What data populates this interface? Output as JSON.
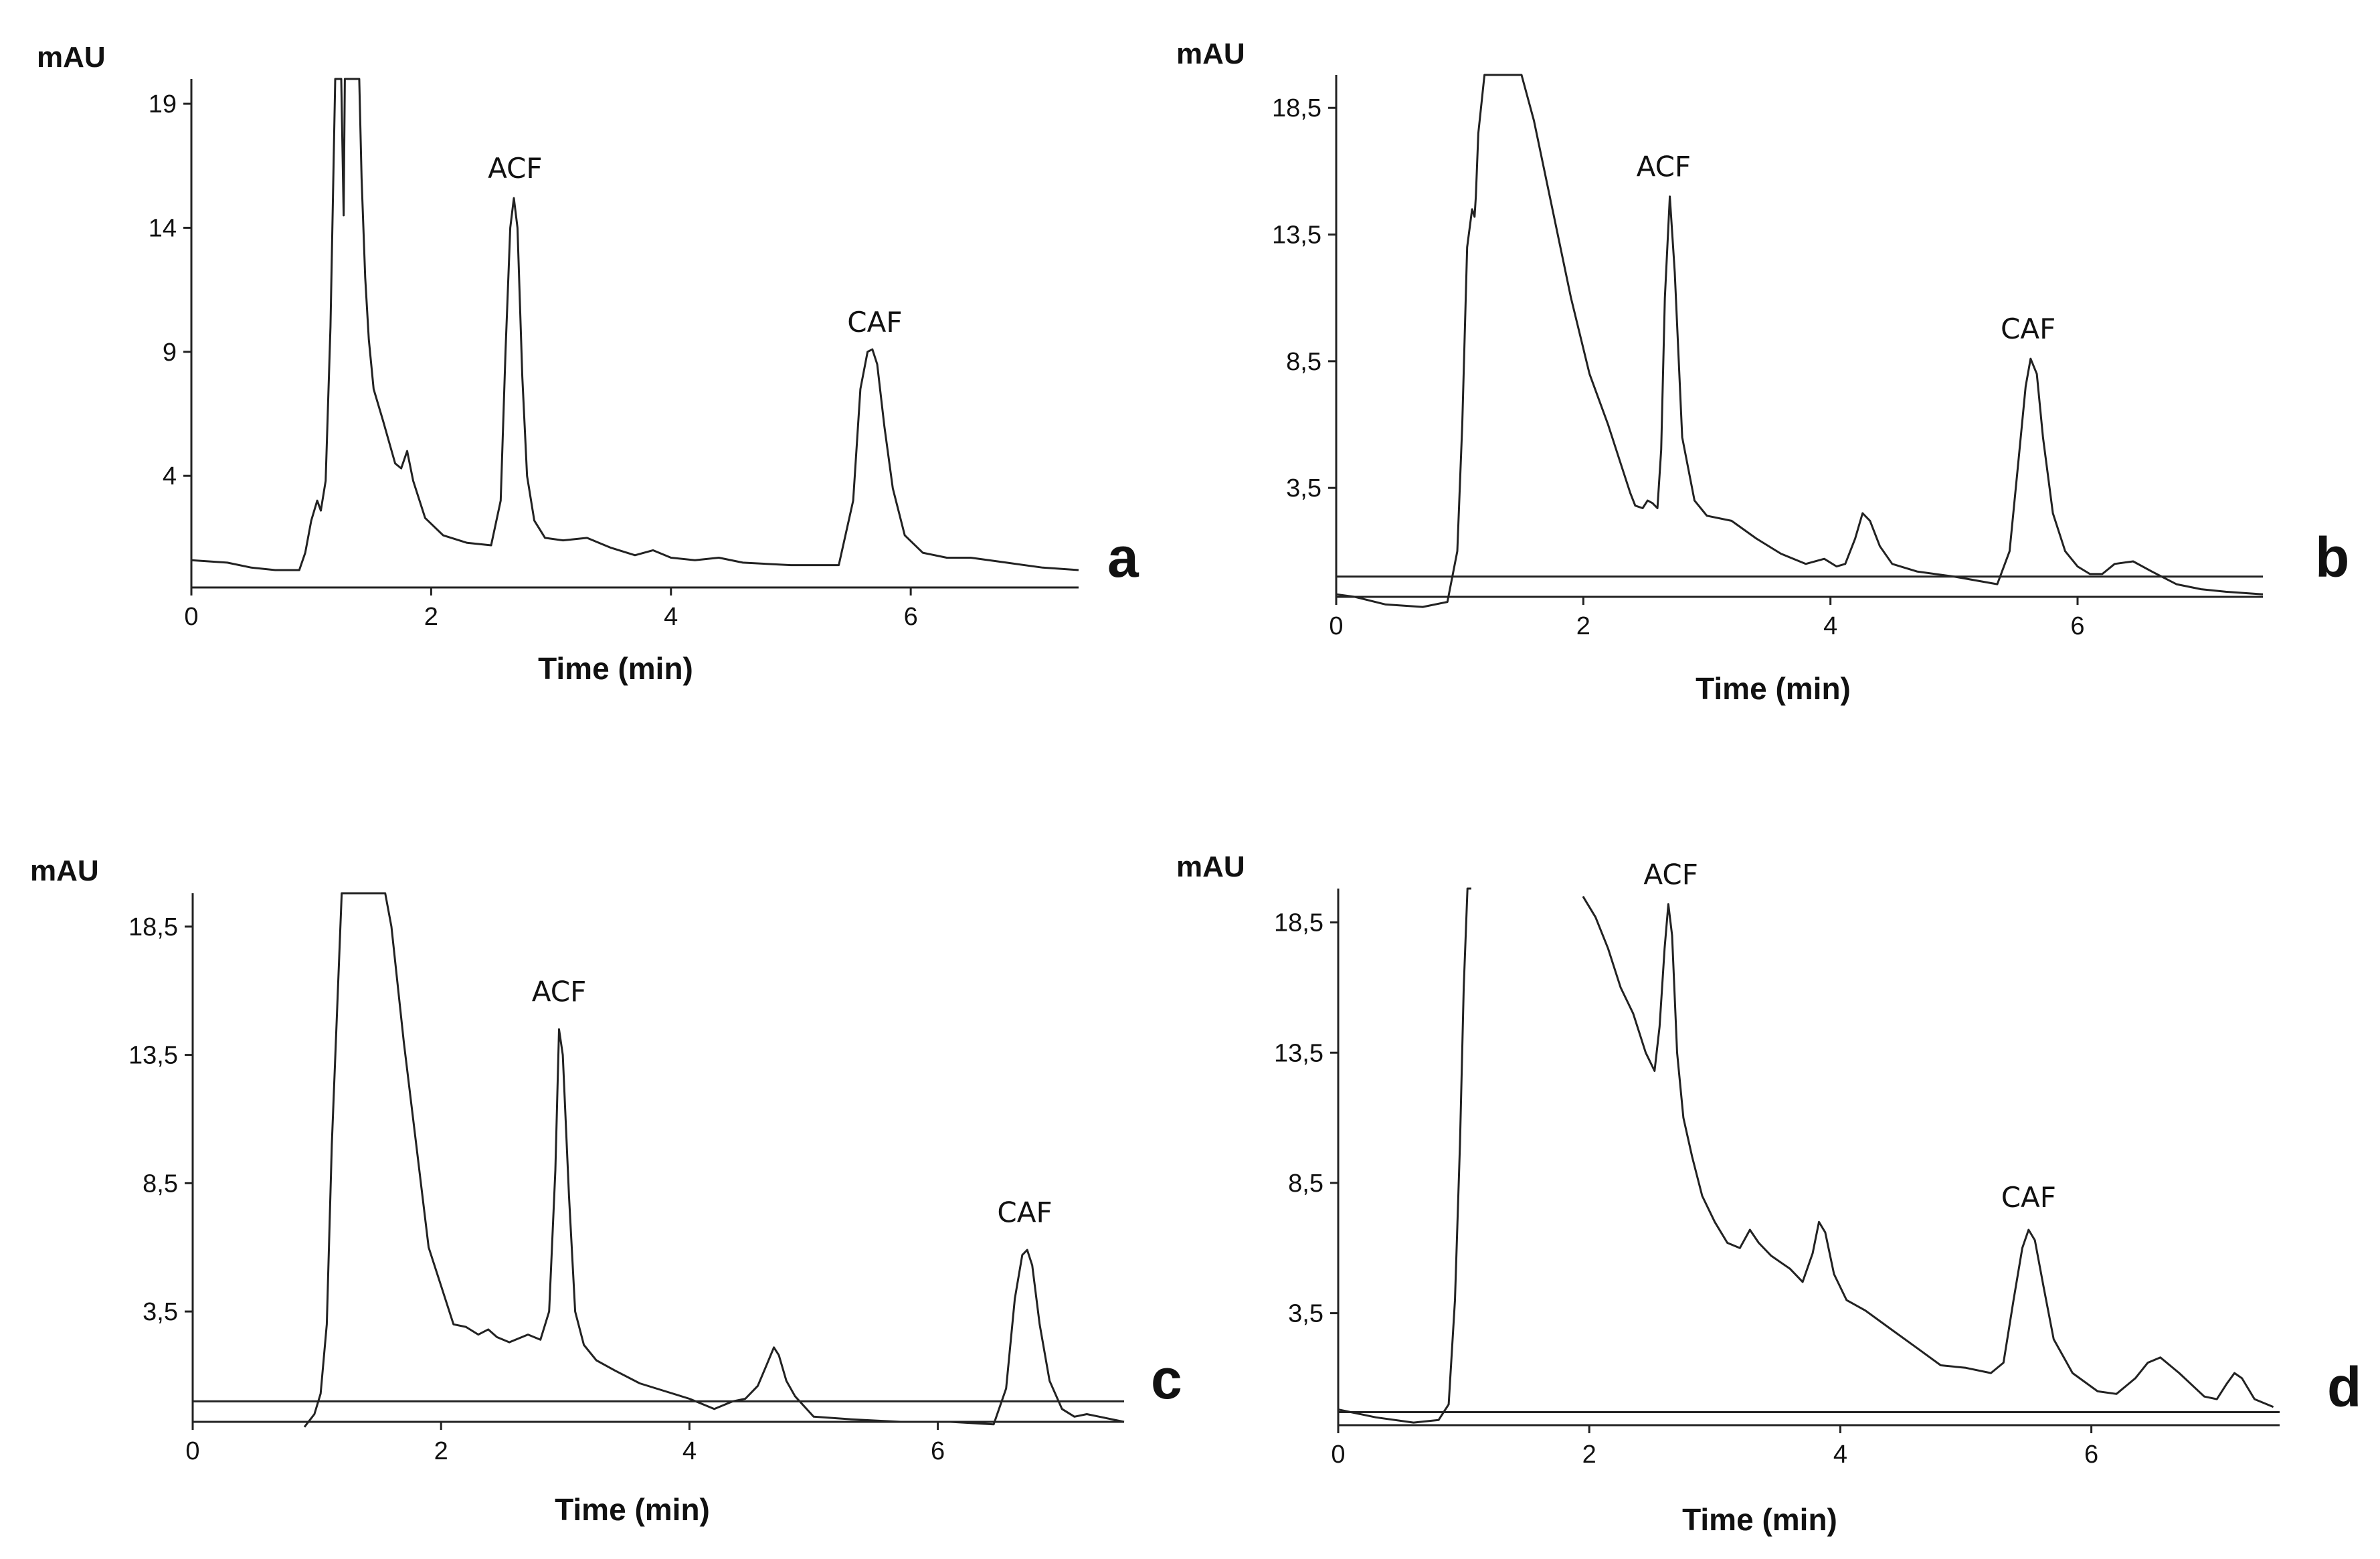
{
  "chart_data": [
    {
      "type": "line",
      "panel_label": "a",
      "ylabel": "mAU",
      "xlabel": "Time (min)",
      "xlim": [
        0,
        7.4
      ],
      "ylim": [
        -0.5,
        20
      ],
      "x_ticks": [
        0,
        2,
        4,
        6
      ],
      "x_tick_labels": [
        "0",
        "2",
        "4",
        "6"
      ],
      "y_ticks": [
        4,
        9,
        14,
        19
      ],
      "y_tick_labels": [
        "4",
        "9",
        "14",
        "19"
      ],
      "baseline_y": null,
      "annotations": [
        {
          "text": "ACF",
          "x": 2.7,
          "y": 15.2
        },
        {
          "text": "CAF",
          "x": 5.7,
          "y": 9.0
        }
      ],
      "series": [
        {
          "name": "chromatogram",
          "x": [
            0,
            0.3,
            0.5,
            0.7,
            0.9,
            0.95,
            1.0,
            1.05,
            1.08,
            1.12,
            1.16,
            1.2,
            1.23,
            1.25,
            1.27,
            1.28,
            1.3,
            1.32,
            1.35,
            1.4,
            1.42,
            1.45,
            1.48,
            1.52,
            1.6,
            1.7,
            1.75,
            1.8,
            1.85,
            1.95,
            2.1,
            2.3,
            2.5,
            2.58,
            2.62,
            2.66,
            2.69,
            2.72,
            2.76,
            2.8,
            2.86,
            2.95,
            3.1,
            3.3,
            3.5,
            3.7,
            3.85,
            4.0,
            4.2,
            4.4,
            4.6,
            5.0,
            5.4,
            5.52,
            5.58,
            5.64,
            5.68,
            5.72,
            5.78,
            5.85,
            5.95,
            6.1,
            6.3,
            6.5,
            6.8,
            7.1,
            7.4
          ],
          "y": [
            0.6,
            0.5,
            0.3,
            0.2,
            0.2,
            0.9,
            2.2,
            3.0,
            2.6,
            3.8,
            10,
            20,
            20,
            20,
            14.5,
            20,
            20,
            20,
            20,
            20,
            16,
            12,
            9.5,
            7.5,
            6.2,
            4.5,
            4.3,
            5.0,
            3.8,
            2.3,
            1.6,
            1.3,
            1.2,
            3.0,
            9.0,
            14.0,
            15.2,
            14.0,
            8.0,
            4.0,
            2.2,
            1.5,
            1.4,
            1.5,
            1.1,
            0.8,
            1.0,
            0.7,
            0.6,
            0.7,
            0.5,
            0.4,
            0.4,
            3.0,
            7.5,
            9.0,
            9.1,
            8.5,
            6.0,
            3.5,
            1.6,
            0.9,
            0.7,
            0.7,
            0.5,
            0.3,
            0.2
          ]
        }
      ]
    },
    {
      "type": "line",
      "panel_label": "b",
      "ylabel": "mAU",
      "xlabel": "Time (min)",
      "xlim": [
        0,
        7.5
      ],
      "ylim": [
        -0.8,
        19.8
      ],
      "x_ticks": [
        0,
        2,
        4,
        6
      ],
      "x_tick_labels": [
        "0",
        "2",
        "4",
        "6"
      ],
      "y_ticks": [
        3.5,
        8.5,
        13.5,
        18.5
      ],
      "y_tick_labels": [
        "3,5",
        "8,5",
        "13,5",
        "18,5"
      ],
      "baseline_y": 0,
      "annotations": [
        {
          "text": "ACF",
          "x": 2.65,
          "y": 15.0
        },
        {
          "text": "CAF",
          "x": 5.6,
          "y": 8.6
        }
      ],
      "series": [
        {
          "name": "chromatogram",
          "x": [
            0,
            0.15,
            0.4,
            0.7,
            0.9,
            0.98,
            1.02,
            1.06,
            1.1,
            1.12,
            1.13,
            1.15,
            1.2,
            1.3,
            1.4,
            1.5,
            1.6,
            1.75,
            1.9,
            2.05,
            2.2,
            2.3,
            2.38,
            2.42,
            2.48,
            2.52,
            2.56,
            2.6,
            2.63,
            2.66,
            2.7,
            2.74,
            2.8,
            2.9,
            3.0,
            3.2,
            3.4,
            3.6,
            3.8,
            3.95,
            4.05,
            4.12,
            4.2,
            4.26,
            4.32,
            4.4,
            4.5,
            4.7,
            5.0,
            5.35,
            5.45,
            5.52,
            5.58,
            5.62,
            5.67,
            5.72,
            5.8,
            5.9,
            6.0,
            6.1,
            6.2,
            6.3,
            6.45,
            6.6,
            6.8,
            7.0,
            7.2,
            7.5
          ],
          "y": [
            -0.7,
            -0.8,
            -1.1,
            -1.2,
            -1.0,
            1.0,
            6.0,
            13.0,
            14.5,
            14.2,
            15.0,
            17.5,
            19.8,
            19.8,
            19.8,
            19.8,
            18.0,
            14.5,
            11.0,
            8.0,
            6.0,
            4.5,
            3.3,
            2.8,
            2.7,
            3.0,
            2.9,
            2.7,
            5.0,
            11.0,
            15.0,
            12.0,
            5.5,
            3.0,
            2.4,
            2.2,
            1.5,
            0.9,
            0.5,
            0.7,
            0.4,
            0.5,
            1.5,
            2.5,
            2.2,
            1.2,
            0.5,
            0.2,
            0.0,
            -0.3,
            1.0,
            4.5,
            7.5,
            8.6,
            8.0,
            5.5,
            2.5,
            1.0,
            0.4,
            0.1,
            0.1,
            0.5,
            0.6,
            0.2,
            -0.3,
            -0.5,
            -0.6,
            -0.7
          ]
        }
      ]
    },
    {
      "type": "line",
      "panel_label": "c",
      "ylabel": "mAU",
      "xlabel": "Time (min)",
      "xlim": [
        0,
        7.5
      ],
      "ylim": [
        -0.8,
        19.8
      ],
      "x_ticks": [
        0,
        2,
        4,
        6
      ],
      "x_tick_labels": [
        "0",
        "2",
        "4",
        "6"
      ],
      "y_ticks": [
        3.5,
        8.5,
        13.5,
        18.5
      ],
      "y_tick_labels": [
        "3,5",
        "8,5",
        "13,5",
        "18,5"
      ],
      "baseline_y": 0,
      "annotations": [
        {
          "text": "ACF",
          "x": 2.95,
          "y": 14.8
        },
        {
          "text": "CAF",
          "x": 6.7,
          "y": 6.2
        }
      ],
      "series": [
        {
          "name": "chromatogram",
          "x": [
            0.9,
            0.98,
            1.03,
            1.08,
            1.12,
            1.2,
            1.3,
            1.4,
            1.5,
            1.55,
            1.6,
            1.7,
            1.8,
            1.9,
            2.0,
            2.1,
            2.2,
            2.3,
            2.38,
            2.45,
            2.55,
            2.7,
            2.8,
            2.87,
            2.92,
            2.95,
            2.98,
            3.03,
            3.08,
            3.15,
            3.25,
            3.4,
            3.6,
            3.8,
            4.0,
            4.2,
            4.35,
            4.45,
            4.55,
            4.62,
            4.68,
            4.72,
            4.78,
            4.85,
            5.0,
            5.3,
            5.7,
            6.1,
            6.45,
            6.55,
            6.62,
            6.68,
            6.72,
            6.76,
            6.82,
            6.9,
            7.0,
            7.1,
            7.2,
            7.3,
            7.5
          ],
          "y": [
            -1.0,
            -0.5,
            0.3,
            3.0,
            10.0,
            19.8,
            19.8,
            19.8,
            19.8,
            19.8,
            18.5,
            14.0,
            10.0,
            6.0,
            4.5,
            3.0,
            2.9,
            2.6,
            2.8,
            2.5,
            2.3,
            2.6,
            2.4,
            3.5,
            9.0,
            14.5,
            13.5,
            8.0,
            3.5,
            2.2,
            1.6,
            1.2,
            0.7,
            0.4,
            0.1,
            -0.3,
            0.0,
            0.1,
            0.6,
            1.4,
            2.1,
            1.8,
            0.8,
            0.2,
            -0.6,
            -0.7,
            -0.8,
            -0.8,
            -0.9,
            0.5,
            4.0,
            5.7,
            5.9,
            5.3,
            3.0,
            0.8,
            -0.3,
            -0.6,
            -0.5,
            -0.6,
            -0.8
          ]
        }
      ]
    },
    {
      "type": "line",
      "panel_label": "d",
      "ylabel": "mAU",
      "xlabel": "Time (min)",
      "xlim": [
        0,
        7.5
      ],
      "ylim": [
        -0.8,
        19.8
      ],
      "x_ticks": [
        0,
        2,
        4,
        6
      ],
      "x_tick_labels": [
        "0",
        "2",
        "4",
        "6"
      ],
      "y_ticks": [
        3.5,
        8.5,
        13.5,
        18.5
      ],
      "y_tick_labels": [
        "3,5",
        "8,5",
        "13,5",
        "18,5"
      ],
      "baseline_y": -0.3,
      "annotations": [
        {
          "text": "ACF",
          "x": 2.65,
          "y": 19.2
        },
        {
          "text": "CAF",
          "x": 5.5,
          "y": 6.8
        }
      ],
      "series": [
        {
          "name": "chromatogram",
          "x": [
            0,
            0.3,
            0.6,
            0.8,
            0.88,
            0.93,
            0.97,
            1.0,
            1.03,
            1.06
          ],
          "y": [
            -0.2,
            -0.5,
            -0.7,
            -0.6,
            0.0,
            4.0,
            10.0,
            16.0,
            19.8,
            19.8
          ]
        },
        {
          "name": "chromatogram-tail",
          "x": [
            1.95,
            2.05,
            2.15,
            2.25,
            2.35,
            2.45,
            2.52,
            2.56,
            2.6,
            2.63,
            2.66,
            2.7,
            2.75,
            2.82,
            2.9,
            3.0,
            3.1,
            3.2,
            3.28,
            3.35,
            3.45,
            3.6,
            3.7,
            3.78,
            3.83,
            3.88,
            3.95,
            4.05,
            4.2,
            4.4,
            4.6,
            4.8,
            5.0,
            5.2,
            5.3,
            5.38,
            5.45,
            5.5,
            5.55,
            5.62,
            5.7,
            5.85,
            6.05,
            6.2,
            6.35,
            6.45,
            6.55,
            6.7,
            6.9,
            7.0,
            7.08,
            7.14,
            7.2,
            7.3,
            7.45
          ],
          "y": [
            19.5,
            18.7,
            17.5,
            16.0,
            15.0,
            13.5,
            12.8,
            14.5,
            17.5,
            19.2,
            18.0,
            13.5,
            11.0,
            9.5,
            8.0,
            7.0,
            6.2,
            6.0,
            6.7,
            6.2,
            5.7,
            5.2,
            4.7,
            5.8,
            7.0,
            6.6,
            5.0,
            4.0,
            3.6,
            2.9,
            2.2,
            1.5,
            1.4,
            1.2,
            1.6,
            4.0,
            6.0,
            6.7,
            6.3,
            4.5,
            2.5,
            1.2,
            0.5,
            0.4,
            1.0,
            1.6,
            1.8,
            1.2,
            0.3,
            0.2,
            0.8,
            1.2,
            1.0,
            0.2,
            -0.1
          ]
        }
      ]
    }
  ]
}
